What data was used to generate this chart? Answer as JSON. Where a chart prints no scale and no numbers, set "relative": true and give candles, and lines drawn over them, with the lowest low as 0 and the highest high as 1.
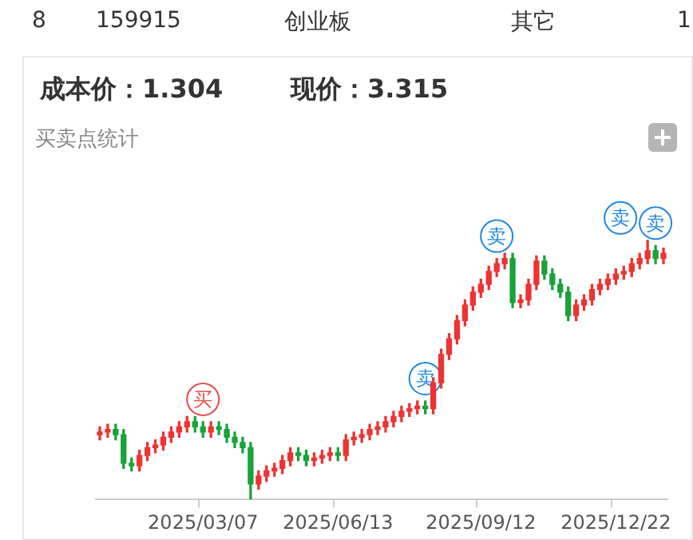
{
  "chart_data": {
    "type": "candlestick",
    "title": "买卖点统计",
    "relative": true,
    "categories": [
      null,
      null,
      null,
      null,
      null,
      null,
      null,
      null,
      null,
      null,
      null,
      null,
      null,
      "2025/03/07",
      null,
      null,
      null,
      null,
      null,
      null,
      null,
      null,
      null,
      null,
      null,
      null,
      null,
      null,
      null,
      null,
      "2025/06/13",
      null,
      null,
      null,
      null,
      null,
      null,
      null,
      null,
      null,
      null,
      null,
      null,
      null,
      null,
      null,
      null,
      null,
      "2025/09/12",
      null,
      null,
      null,
      null,
      null,
      null,
      null,
      null,
      null,
      null,
      null,
      null,
      null,
      null,
      null,
      null,
      "2025/12/22",
      null,
      null,
      null,
      null,
      null,
      null
    ],
    "ohlc": [
      [
        0.25,
        0.28,
        0.23,
        0.26
      ],
      [
        0.26,
        0.29,
        0.24,
        0.27
      ],
      [
        0.27,
        0.29,
        0.23,
        0.25
      ],
      [
        0.25,
        0.27,
        0.12,
        0.14
      ],
      [
        0.14,
        0.16,
        0.11,
        0.13
      ],
      [
        0.13,
        0.19,
        0.11,
        0.17
      ],
      [
        0.17,
        0.22,
        0.15,
        0.2
      ],
      [
        0.2,
        0.23,
        0.18,
        0.21
      ],
      [
        0.21,
        0.26,
        0.19,
        0.24
      ],
      [
        0.24,
        0.28,
        0.22,
        0.26
      ],
      [
        0.26,
        0.3,
        0.24,
        0.28
      ],
      [
        0.28,
        0.32,
        0.26,
        0.3
      ],
      [
        0.3,
        0.32,
        0.26,
        0.28
      ],
      [
        0.28,
        0.3,
        0.24,
        0.26
      ],
      [
        0.26,
        0.3,
        0.24,
        0.28
      ],
      [
        0.28,
        0.3,
        0.25,
        0.27
      ],
      [
        0.27,
        0.29,
        0.22,
        0.24
      ],
      [
        0.24,
        0.26,
        0.2,
        0.22
      ],
      [
        0.22,
        0.24,
        0.18,
        0.2
      ],
      [
        0.2,
        0.22,
        0.0,
        0.06
      ],
      [
        0.06,
        0.11,
        0.04,
        0.09
      ],
      [
        0.09,
        0.13,
        0.07,
        0.11
      ],
      [
        0.11,
        0.14,
        0.09,
        0.12
      ],
      [
        0.12,
        0.17,
        0.1,
        0.15
      ],
      [
        0.15,
        0.2,
        0.13,
        0.18
      ],
      [
        0.18,
        0.2,
        0.15,
        0.17
      ],
      [
        0.17,
        0.19,
        0.13,
        0.15
      ],
      [
        0.15,
        0.18,
        0.13,
        0.16
      ],
      [
        0.16,
        0.19,
        0.14,
        0.17
      ],
      [
        0.17,
        0.2,
        0.15,
        0.18
      ],
      [
        0.18,
        0.2,
        0.15,
        0.17
      ],
      [
        0.17,
        0.25,
        0.15,
        0.23
      ],
      [
        0.23,
        0.26,
        0.21,
        0.24
      ],
      [
        0.24,
        0.27,
        0.22,
        0.25
      ],
      [
        0.25,
        0.29,
        0.23,
        0.27
      ],
      [
        0.27,
        0.3,
        0.25,
        0.28
      ],
      [
        0.28,
        0.32,
        0.26,
        0.3
      ],
      [
        0.3,
        0.34,
        0.28,
        0.32
      ],
      [
        0.32,
        0.36,
        0.3,
        0.34
      ],
      [
        0.34,
        0.37,
        0.32,
        0.35
      ],
      [
        0.35,
        0.38,
        0.33,
        0.36
      ],
      [
        0.36,
        0.38,
        0.33,
        0.35
      ],
      [
        0.35,
        0.47,
        0.33,
        0.45
      ],
      [
        0.45,
        0.58,
        0.43,
        0.56
      ],
      [
        0.56,
        0.64,
        0.54,
        0.62
      ],
      [
        0.62,
        0.71,
        0.6,
        0.69
      ],
      [
        0.69,
        0.77,
        0.67,
        0.75
      ],
      [
        0.75,
        0.82,
        0.73,
        0.8
      ],
      [
        0.8,
        0.85,
        0.78,
        0.83
      ],
      [
        0.83,
        0.9,
        0.81,
        0.88
      ],
      [
        0.88,
        0.93,
        0.86,
        0.91
      ],
      [
        0.91,
        0.95,
        0.89,
        0.93
      ],
      [
        0.93,
        0.95,
        0.74,
        0.76
      ],
      [
        0.76,
        0.79,
        0.74,
        0.77
      ],
      [
        0.77,
        0.85,
        0.75,
        0.83
      ],
      [
        0.83,
        0.94,
        0.81,
        0.92
      ],
      [
        0.92,
        0.94,
        0.85,
        0.87
      ],
      [
        0.87,
        0.89,
        0.81,
        0.83
      ],
      [
        0.83,
        0.85,
        0.78,
        0.8
      ],
      [
        0.8,
        0.82,
        0.69,
        0.71
      ],
      [
        0.71,
        0.77,
        0.69,
        0.75
      ],
      [
        0.75,
        0.79,
        0.73,
        0.77
      ],
      [
        0.77,
        0.83,
        0.75,
        0.81
      ],
      [
        0.81,
        0.85,
        0.79,
        0.83
      ],
      [
        0.83,
        0.87,
        0.81,
        0.85
      ],
      [
        0.85,
        0.89,
        0.83,
        0.87
      ],
      [
        0.87,
        0.9,
        0.85,
        0.88
      ],
      [
        0.88,
        0.93,
        0.86,
        0.91
      ],
      [
        0.91,
        0.95,
        0.89,
        0.93
      ],
      [
        0.93,
        1.0,
        0.91,
        0.96
      ],
      [
        0.96,
        0.98,
        0.91,
        0.93
      ],
      [
        0.93,
        0.97,
        0.91,
        0.95
      ]
    ],
    "colors": [
      "#ee3333",
      "#ee3333",
      "#19a33a",
      "#19a33a",
      "#19a33a",
      "#ee3333",
      "#ee3333",
      "#ee3333",
      "#ee3333",
      "#ee3333",
      "#ee3333",
      "#ee3333",
      "#19a33a",
      "#19a33a",
      "#ee3333",
      "#19a33a",
      "#19a33a",
      "#19a33a",
      "#19a33a",
      "#19a33a",
      "#ee3333",
      "#ee3333",
      "#ee3333",
      "#ee3333",
      "#ee3333",
      "#19a33a",
      "#19a33a",
      "#ee3333",
      "#ee3333",
      "#ee3333",
      "#19a33a",
      "#ee3333",
      "#ee3333",
      "#ee3333",
      "#ee3333",
      "#ee3333",
      "#ee3333",
      "#ee3333",
      "#ee3333",
      "#ee3333",
      "#ee3333",
      "#19a33a",
      "#ee3333",
      "#ee3333",
      "#ee3333",
      "#ee3333",
      "#ee3333",
      "#ee3333",
      "#ee3333",
      "#ee3333",
      "#ee3333",
      "#ee3333",
      "#19a33a",
      "#ee3333",
      "#ee3333",
      "#ee3333",
      "#19a33a",
      "#19a33a",
      "#19a33a",
      "#19a33a",
      "#ee3333",
      "#ee3333",
      "#ee3333",
      "#ee3333",
      "#ee3333",
      "#ee3333",
      "#ee3333",
      "#ee3333",
      "#ee3333",
      "#ee3333",
      "#19a33a",
      "#ee3333"
    ],
    "annotations": [
      "8",
      "159915",
      "创业板",
      "其它",
      "1",
      "成本价：1.304",
      "现价：3.315",
      "买",
      "卖",
      "卖",
      "卖",
      "卖"
    ]
  }
}
